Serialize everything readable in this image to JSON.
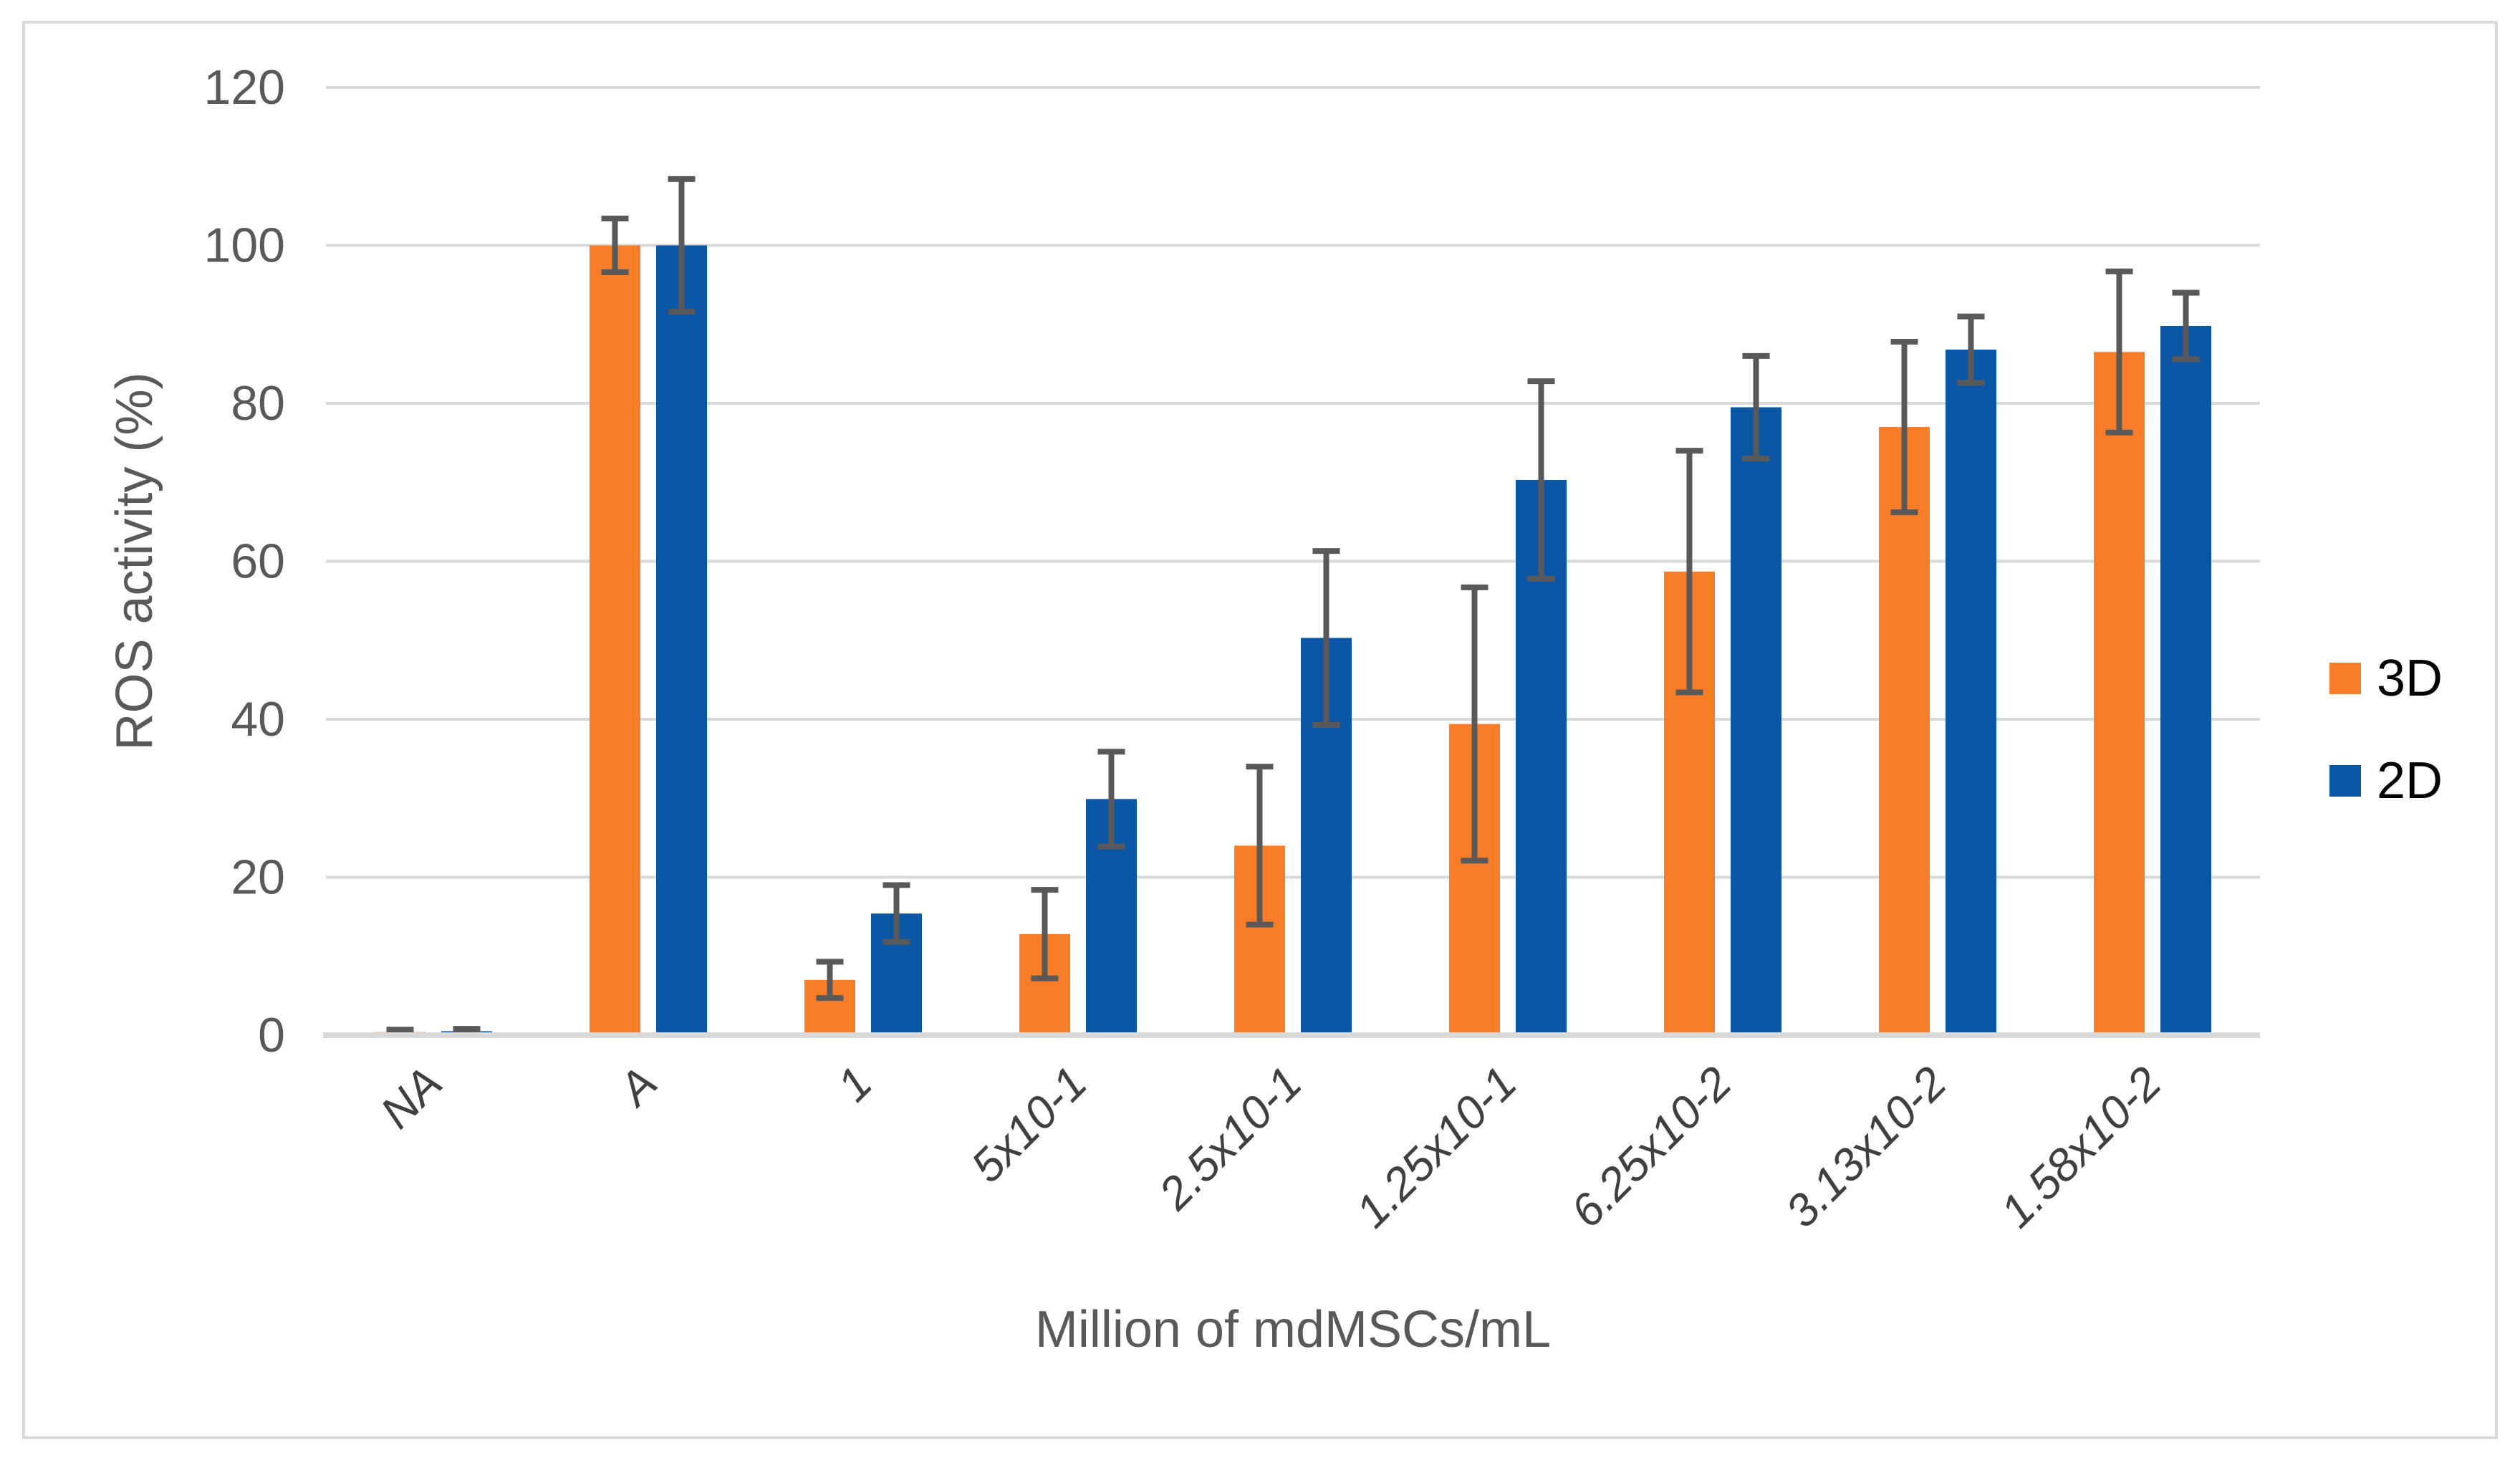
{
  "figure": {
    "background_color": "#FFFFFF",
    "border_color": "#D9D9D9"
  },
  "chart_data": {
    "type": "bar",
    "title": "",
    "xlabel": "Million of mdMSCs/mL",
    "ylabel": "ROS activity (%)",
    "ylim": [
      0,
      120
    ],
    "yticks": [
      0,
      20,
      40,
      60,
      80,
      100,
      120
    ],
    "grid": true,
    "legend_position": "right",
    "categories": [
      "NA",
      "A",
      "1",
      "5x10-1",
      "2.5x10-1",
      "1.25x10-1",
      "6.25x10-2",
      "3.13x10-2",
      "1.58x10-2"
    ],
    "series": [
      {
        "name": "3D",
        "color": "#F97D27",
        "values": [
          0.4,
          100,
          7,
          12.8,
          24,
          39.4,
          58.7,
          77,
          86.5
        ],
        "errors": [
          0.3,
          3.4,
          2.3,
          5.6,
          10,
          17.3,
          15.3,
          10.8,
          10.2
        ]
      },
      {
        "name": "2D",
        "color": "#0B57A5",
        "values": [
          0.5,
          100,
          15.4,
          29.9,
          50.3,
          70.3,
          79.5,
          86.8,
          89.8
        ],
        "errors": [
          0.3,
          8.4,
          3.6,
          6,
          11,
          12.5,
          6.5,
          4.2,
          4.2
        ]
      }
    ],
    "error_bar_color": "#595959",
    "gridline_color": "#D9D9D9",
    "axis_line_color": "#D9D9D9",
    "ytick_text_color": "#595959",
    "xtick_text_color": "#404040",
    "axis_title_color": "#595959"
  }
}
